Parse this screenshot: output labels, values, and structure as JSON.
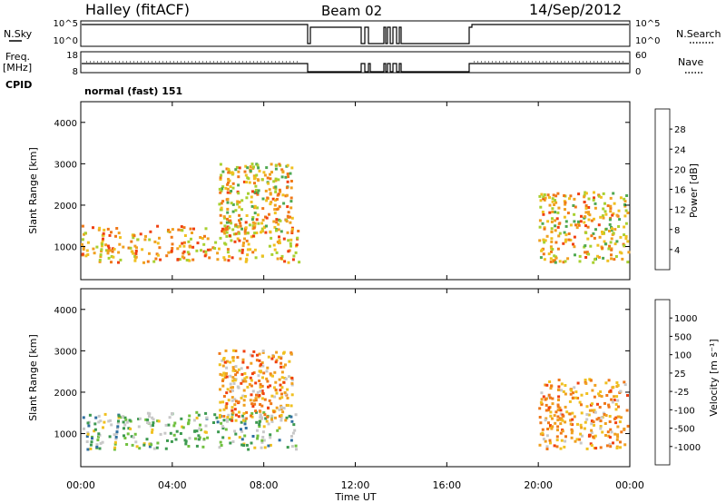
{
  "header": {
    "station": "Halley (fitACF)",
    "beam": "Beam 02",
    "date": "14/Sep/2012"
  },
  "top_panel": {
    "left_label": "N.Sky",
    "right_label": "N.Search",
    "left_ticks": [
      "10^5",
      "10^0"
    ],
    "right_ticks": [
      "10^5",
      "10^0"
    ]
  },
  "freq_panel": {
    "left_label_1": "Freq.",
    "left_label_2": "[MHz]",
    "right_label": "Nave",
    "left_ticks": [
      "18",
      "8"
    ],
    "right_ticks": [
      "60",
      "0"
    ]
  },
  "cpid": {
    "label": "CPID",
    "value": "normal (fast) 151"
  },
  "colors": {
    "power_scale": [
      "#1010f0",
      "#2a55b0",
      "#3d8a70",
      "#4ea850",
      "#a8d030",
      "#f0c020",
      "#f0a020",
      "#f07818",
      "#f04010",
      "#e01010"
    ],
    "velocity_scale": [
      "#e01010",
      "#f04010",
      "#f07818",
      "#f0a020",
      "#f0c020",
      "#c8c8c8",
      "#70c040",
      "#3d9a50",
      "#3070a0",
      "#1f3fb0"
    ]
  },
  "chart_data": [
    {
      "type": "heatmap",
      "title": "",
      "xlabel": "Time UT",
      "ylabel": "Slant Range [km]",
      "x_ticks": [
        "00:00",
        "04:00",
        "08:00",
        "12:00",
        "16:00",
        "20:00",
        "00:00"
      ],
      "y_ticks": [
        "1000",
        "2000",
        "3000",
        "4000"
      ],
      "ylim": [
        200,
        4500
      ],
      "colorbar": {
        "label": "Power [dB]",
        "ticks": [
          "4",
          "8",
          "12",
          "16",
          "20",
          "24",
          "28"
        ],
        "range": [
          0,
          30
        ]
      },
      "echo_regions": [
        {
          "t_start": 0.0,
          "t_end": 9.5,
          "range_low": 600,
          "range_high": 1500,
          "value": 18
        },
        {
          "t_start": 6.0,
          "t_end": 9.2,
          "range_low": 1300,
          "range_high": 3000,
          "value": 16
        },
        {
          "t_start": 20.0,
          "t_end": 23.9,
          "range_low": 600,
          "range_high": 2300,
          "value": 16
        }
      ]
    },
    {
      "type": "heatmap",
      "title": "",
      "xlabel": "Time UT",
      "ylabel": "Slant Range [km]",
      "x_ticks": [
        "00:00",
        "04:00",
        "08:00",
        "12:00",
        "16:00",
        "20:00",
        "00:00"
      ],
      "y_ticks": [
        "1000",
        "2000",
        "3000",
        "4000"
      ],
      "ylim": [
        200,
        4500
      ],
      "colorbar": {
        "label": "Velocity [m s⁻¹]",
        "ticks": [
          "1000",
          "500",
          "100",
          "25",
          "-25",
          "-100",
          "-500",
          "-1000"
        ]
      },
      "echo_regions": [
        {
          "t_start": 0.0,
          "t_end": 9.5,
          "range_low": 600,
          "range_high": 1500,
          "value": 100
        },
        {
          "t_start": 6.0,
          "t_end": 9.2,
          "range_low": 1300,
          "range_high": 3000,
          "value": -100
        },
        {
          "t_start": 20.0,
          "t_end": 23.9,
          "range_low": 600,
          "range_high": 2300,
          "value": -100
        }
      ]
    }
  ]
}
